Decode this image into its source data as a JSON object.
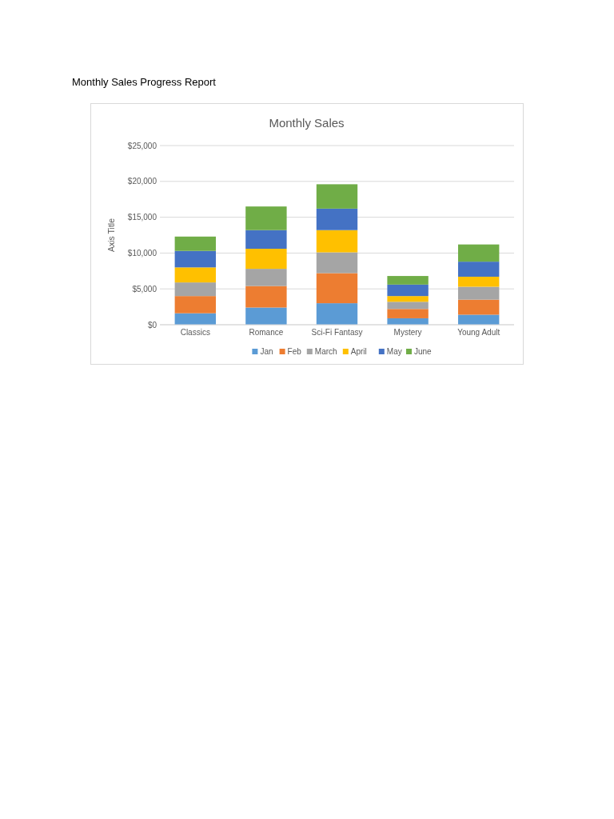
{
  "chart_data": {
    "type": "bar",
    "title": "Monthly Sales",
    "ylabel": "Axis Title",
    "annotations": [
      "Monthly Sales Progress Report"
    ],
    "categories": [
      "Classics",
      "Romance",
      "Sci-Fi Fantasy",
      "Mystery",
      "Young Adult"
    ],
    "series": [
      {
        "name": "Jan",
        "color": "#5b9bd5",
        "values": [
          1600,
          2400,
          3000,
          900,
          1400
        ]
      },
      {
        "name": "Feb",
        "color": "#ed7d31",
        "values": [
          2400,
          3000,
          4200,
          1300,
          2100
        ]
      },
      {
        "name": "March",
        "color": "#a5a5a5",
        "values": [
          1900,
          2400,
          2900,
          1000,
          1800
        ]
      },
      {
        "name": "April",
        "color": "#ffc000",
        "values": [
          2100,
          2800,
          3100,
          800,
          1400
        ]
      },
      {
        "name": "May",
        "color": "#4472c4",
        "values": [
          2300,
          2600,
          3000,
          1600,
          2100
        ]
      },
      {
        "name": "June",
        "color": "#70ad47",
        "values": [
          2000,
          3300,
          3400,
          1200,
          2400
        ]
      }
    ],
    "stacked": true,
    "ylim": [
      0,
      25000
    ],
    "yticks": [
      {
        "value": 0,
        "label": "$0"
      },
      {
        "value": 5000,
        "label": "$5,000"
      },
      {
        "value": 10000,
        "label": "$10,000"
      },
      {
        "value": 15000,
        "label": "$15,000"
      },
      {
        "value": 20000,
        "label": "$20,000"
      },
      {
        "value": 25000,
        "label": "$25,000"
      }
    ],
    "grid": "y",
    "legend": "bottom"
  }
}
